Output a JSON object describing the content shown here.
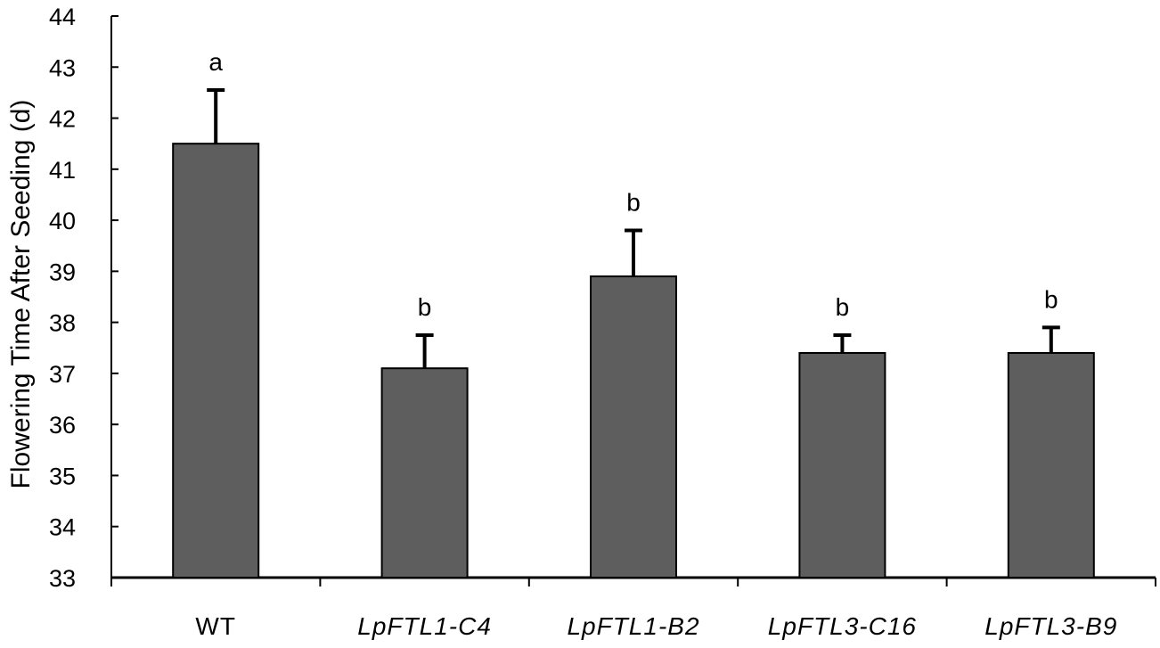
{
  "chart_data": {
    "type": "bar",
    "ylabel": "Flowering Time After Seeding (d)",
    "xlabel": "",
    "ylim": [
      33,
      44
    ],
    "yticks": [
      33,
      34,
      35,
      36,
      37,
      38,
      39,
      40,
      41,
      42,
      43,
      44
    ],
    "grid": false,
    "legend": "none",
    "categories": [
      "WT",
      "LpFTL1-C4",
      "LpFTL1-B2",
      "LpFTL3-C16",
      "LpFTL3-B9"
    ],
    "italic_categories": [
      false,
      true,
      true,
      true,
      true
    ],
    "values": [
      41.5,
      37.1,
      38.9,
      37.4,
      37.4
    ],
    "errors": [
      1.05,
      0.65,
      0.9,
      0.35,
      0.5
    ],
    "significance": [
      "a",
      "b",
      "b",
      "b",
      "b"
    ],
    "colors": {
      "bar": "#5e5e5e",
      "axis": "#000000"
    }
  }
}
